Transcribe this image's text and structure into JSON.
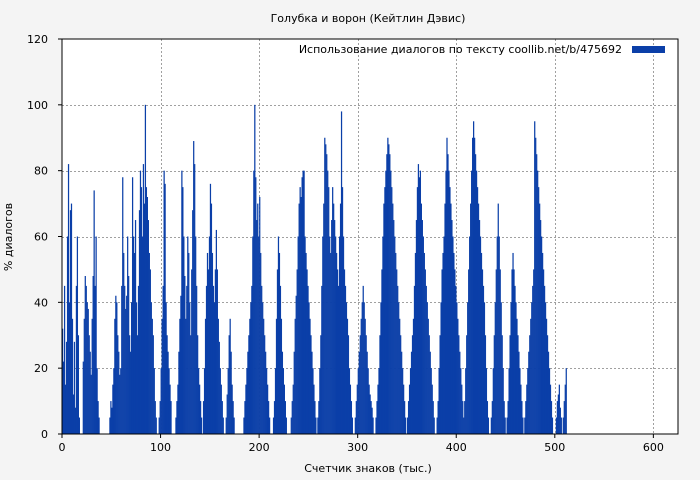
{
  "chart_data": {
    "type": "bar",
    "title": "Голубка и ворон (Кейтлин Дэвис)",
    "xlabel": "Счетчик знаков (тыс.)",
    "ylabel": "% диалогов",
    "xlim": [
      0,
      625
    ],
    "ylim": [
      0,
      120
    ],
    "xticks": [
      0,
      100,
      200,
      300,
      400,
      500,
      600
    ],
    "yticks": [
      0,
      20,
      40,
      60,
      80,
      100,
      120
    ],
    "grid": true,
    "legend_position": "top-right",
    "series": [
      {
        "name": "Использование диалогов по тексту  coollib.net/b/475692",
        "color": "#0b3fa8",
        "bin_width": 1,
        "values": [
          32,
          22,
          45,
          15,
          28,
          60,
          82,
          40,
          68,
          70,
          35,
          12,
          28,
          8,
          45,
          60,
          30,
          5,
          0,
          0,
          0,
          22,
          35,
          48,
          45,
          40,
          38,
          30,
          25,
          18,
          35,
          48,
          74,
          45,
          60,
          20,
          10,
          5,
          0,
          0,
          0,
          0,
          0,
          0,
          0,
          0,
          0,
          0,
          5,
          10,
          8,
          15,
          20,
          35,
          42,
          40,
          30,
          25,
          18,
          20,
          45,
          78,
          55,
          45,
          38,
          42,
          60,
          48,
          30,
          25,
          40,
          78,
          60,
          55,
          65,
          40,
          30,
          45,
          68,
          80,
          75,
          60,
          82,
          70,
          100,
          75,
          72,
          65,
          55,
          50,
          40,
          35,
          30,
          20,
          10,
          5,
          0,
          0,
          5,
          10,
          20,
          35,
          45,
          80,
          76,
          40,
          30,
          25,
          20,
          15,
          10,
          0,
          0,
          0,
          0,
          5,
          10,
          15,
          25,
          35,
          42,
          80,
          75,
          60,
          48,
          35,
          45,
          60,
          55,
          40,
          30,
          50,
          68,
          89,
          82,
          60,
          45,
          30,
          20,
          15,
          10,
          5,
          0,
          10,
          20,
          35,
          45,
          55,
          50,
          60,
          76,
          70,
          55,
          45,
          40,
          50,
          62,
          50,
          35,
          28,
          20,
          15,
          10,
          5,
          0,
          0,
          5,
          12,
          20,
          30,
          35,
          25,
          15,
          10,
          5,
          0,
          0,
          0,
          0,
          0,
          0,
          0,
          0,
          0,
          5,
          10,
          15,
          20,
          25,
          30,
          35,
          40,
          45,
          60,
          80,
          100,
          78,
          65,
          70,
          60,
          72,
          55,
          45,
          40,
          35,
          30,
          25,
          20,
          15,
          10,
          5,
          0,
          0,
          0,
          5,
          10,
          20,
          35,
          50,
          60,
          55,
          45,
          35,
          25,
          20,
          15,
          10,
          5,
          0,
          0,
          0,
          0,
          5,
          10,
          15,
          25,
          35,
          42,
          50,
          60,
          70,
          75,
          72,
          78,
          80,
          80,
          60,
          55,
          50,
          45,
          40,
          35,
          30,
          25,
          20,
          15,
          10,
          5,
          0,
          5,
          10,
          20,
          30,
          45,
          60,
          70,
          90,
          88,
          85,
          80,
          75,
          60,
          55,
          65,
          75,
          70,
          65,
          60,
          55,
          50,
          45,
          60,
          70,
          98,
          75,
          60,
          50,
          45,
          40,
          35,
          30,
          20,
          15,
          10,
          5,
          0,
          0,
          5,
          10,
          15,
          20,
          25,
          30,
          35,
          40,
          45,
          40,
          35,
          30,
          25,
          20,
          15,
          12,
          10,
          8,
          5,
          0,
          0,
          5,
          10,
          15,
          20,
          30,
          40,
          50,
          60,
          70,
          75,
          80,
          85,
          90,
          88,
          85,
          80,
          75,
          70,
          65,
          60,
          55,
          50,
          45,
          40,
          35,
          30,
          25,
          20,
          15,
          10,
          5,
          0,
          5,
          10,
          15,
          20,
          25,
          30,
          35,
          45,
          55,
          65,
          75,
          82,
          78,
          80,
          70,
          65,
          60,
          55,
          50,
          45,
          40,
          35,
          30,
          25,
          20,
          15,
          10,
          5,
          0,
          0,
          5,
          10,
          20,
          30,
          40,
          50,
          55,
          60,
          70,
          80,
          90,
          85,
          80,
          75,
          70,
          65,
          60,
          55,
          50,
          45,
          40,
          35,
          30,
          25,
          20,
          15,
          10,
          5,
          10,
          20,
          30,
          40,
          50,
          60,
          70,
          80,
          90,
          95,
          90,
          85,
          80,
          75,
          70,
          65,
          60,
          55,
          50,
          45,
          40,
          30,
          20,
          10,
          5,
          0,
          0,
          5,
          10,
          20,
          30,
          40,
          50,
          60,
          70,
          60,
          50,
          40,
          30,
          20,
          10,
          5,
          0,
          5,
          10,
          20,
          30,
          40,
          50,
          55,
          50,
          45,
          40,
          35,
          30,
          25,
          20,
          15,
          10,
          5,
          0,
          5,
          10,
          15,
          20,
          25,
          30,
          35,
          40,
          45,
          50,
          95,
          90,
          85,
          80,
          75,
          70,
          65,
          60,
          55,
          50,
          45,
          40,
          35,
          30,
          25,
          20,
          15,
          10,
          5,
          0,
          0,
          0,
          5,
          10,
          12,
          15,
          8,
          5,
          0,
          5,
          10,
          15,
          20
        ]
      }
    ]
  }
}
